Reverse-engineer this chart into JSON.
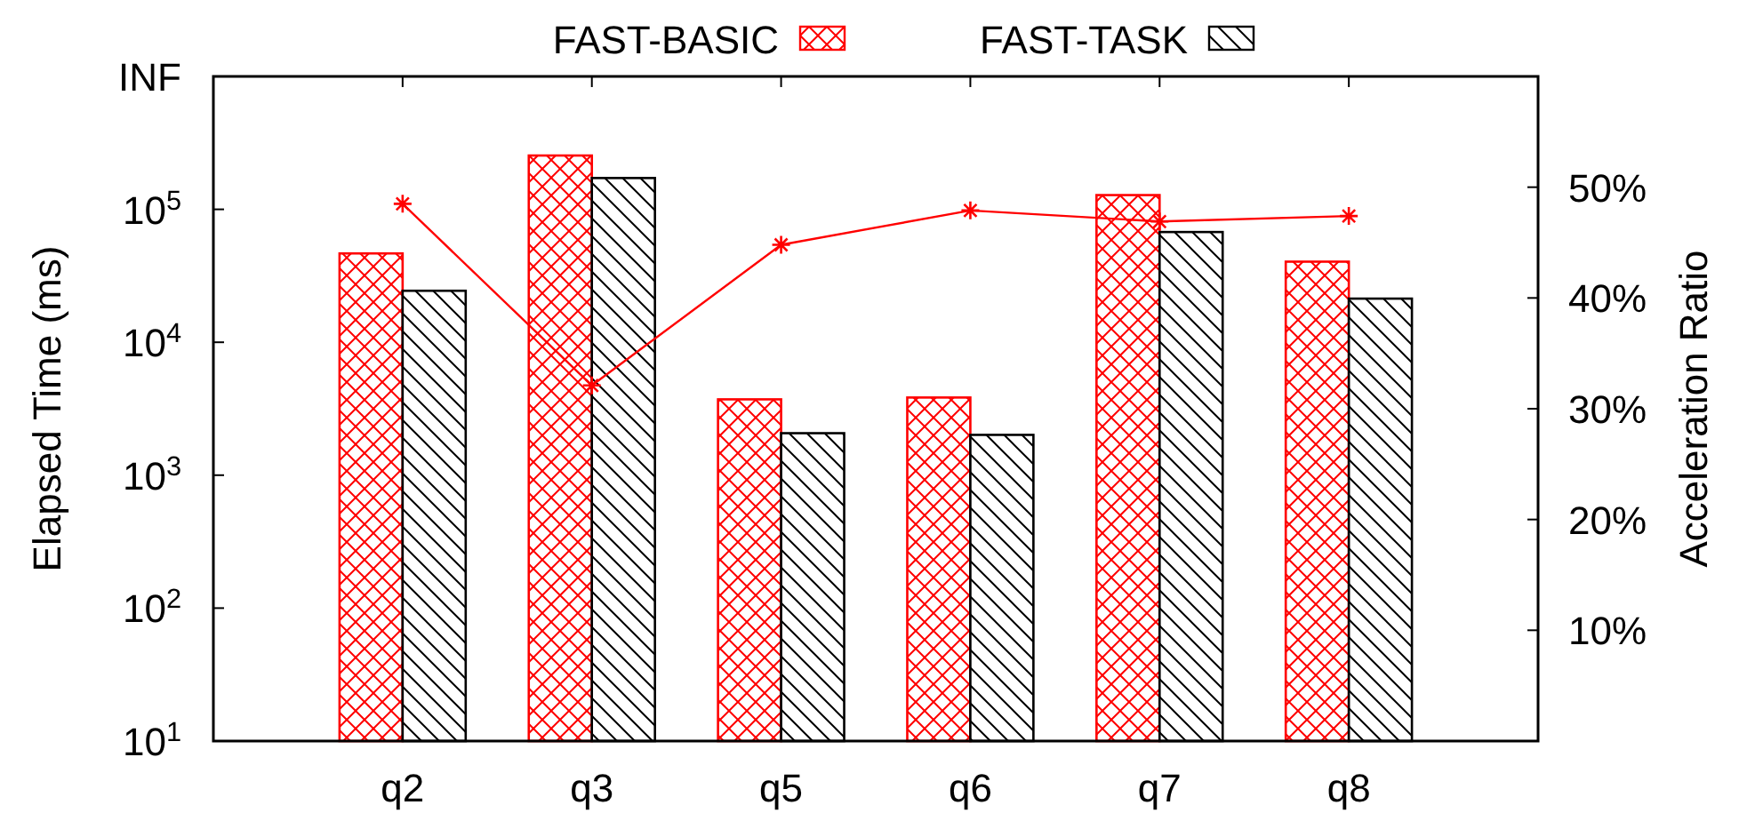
{
  "chart_data": {
    "type": "bar",
    "ylabel": "Elapsed Time (ms)",
    "y2label": "Acceleration Ratio",
    "categories": [
      "q2",
      "q3",
      "q5",
      "q6",
      "q7",
      "q8"
    ],
    "log": "y",
    "legend": "top",
    "ylim": [
      10,
      1000000
    ],
    "yticks": [
      {
        "value": 10,
        "label": "10$^{1}$"
      },
      {
        "value": 100,
        "label": "10$^{2}$"
      },
      {
        "value": 1000,
        "label": "10$^{3}$"
      },
      {
        "value": 10000,
        "label": "10$^{4}$"
      },
      {
        "value": 100000,
        "label": "10$^{5}$"
      },
      {
        "value": 1000000,
        "label": "INF"
      }
    ],
    "y2lim": [
      0,
      60
    ],
    "y2ticks": [
      {
        "value": 10,
        "label": "10%"
      },
      {
        "value": 20,
        "label": "20%"
      },
      {
        "value": 30,
        "label": "30%"
      },
      {
        "value": 40,
        "label": "40%"
      },
      {
        "value": 50,
        "label": "50%"
      }
    ],
    "series": [
      {
        "name": "FAST-BASIC",
        "color": "#ff0000",
        "values": [
          46600,
          254000,
          3720,
          3840,
          128000,
          40400
        ]
      },
      {
        "name": "FAST-TASK",
        "color": "#000000",
        "values": [
          24400,
          172000,
          2070,
          2010,
          67500,
          21300
        ]
      },
      {
        "type": "line",
        "axis": "y2",
        "color": "#ff0000",
        "marker": "cross",
        "values": [
          48.5,
          32.1,
          44.8,
          47.9,
          46.9,
          47.4
        ]
      }
    ]
  }
}
